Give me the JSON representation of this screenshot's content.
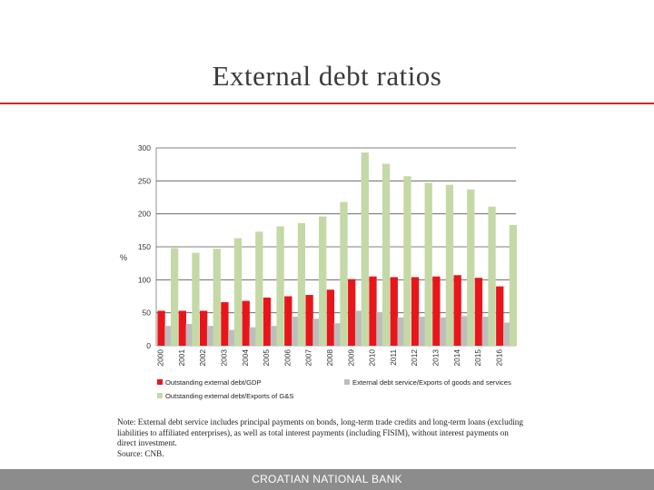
{
  "slide": {
    "title": "External debt ratios",
    "note": "Note: External debt service includes principal payments on bonds, long-term trade credits and long-term loans (excluding liabilities to affiliated enterprises), as well as total interest payments (including FISIM), without interest payments on direct investment.",
    "source": "Source: CNB.",
    "footer": "CROATIAN NATIONAL BANK"
  },
  "colors": {
    "title_rule": "#c8282e",
    "footer_bar": "#8c8c8c"
  },
  "chart_data": {
    "type": "bar",
    "title": "",
    "xlabel": "",
    "ylabel": "%",
    "ylim": [
      0,
      300
    ],
    "yticks": [
      0,
      50,
      100,
      150,
      200,
      250,
      300
    ],
    "grid": true,
    "legend_position": "bottom",
    "categories": [
      "2000",
      "2001",
      "2002",
      "2003",
      "2004",
      "2005",
      "2006",
      "2007",
      "2008",
      "2009",
      "2010",
      "2011",
      "2012",
      "2013",
      "2014",
      "2015",
      "2016"
    ],
    "series": [
      {
        "name": "Outstanding external debt/GDP",
        "color": "#e8161b",
        "values": [
          53,
          53,
          53,
          66,
          68,
          73,
          75,
          77,
          85,
          101,
          105,
          104,
          104,
          105,
          107,
          103,
          90
        ]
      },
      {
        "name": "Outstanding external debt/Exports of G&S",
        "color": "#c5d9a6",
        "values": [
          148,
          141,
          147,
          163,
          173,
          181,
          186,
          196,
          218,
          293,
          276,
          257,
          247,
          244,
          237,
          211,
          183
        ]
      },
      {
        "name": "External debt service/Exports of goods and services",
        "color": "#bdbdbd",
        "values": [
          30,
          33,
          30,
          24,
          28,
          30,
          44,
          41,
          34,
          53,
          51,
          43,
          44,
          43,
          45,
          44,
          35
        ]
      }
    ]
  }
}
